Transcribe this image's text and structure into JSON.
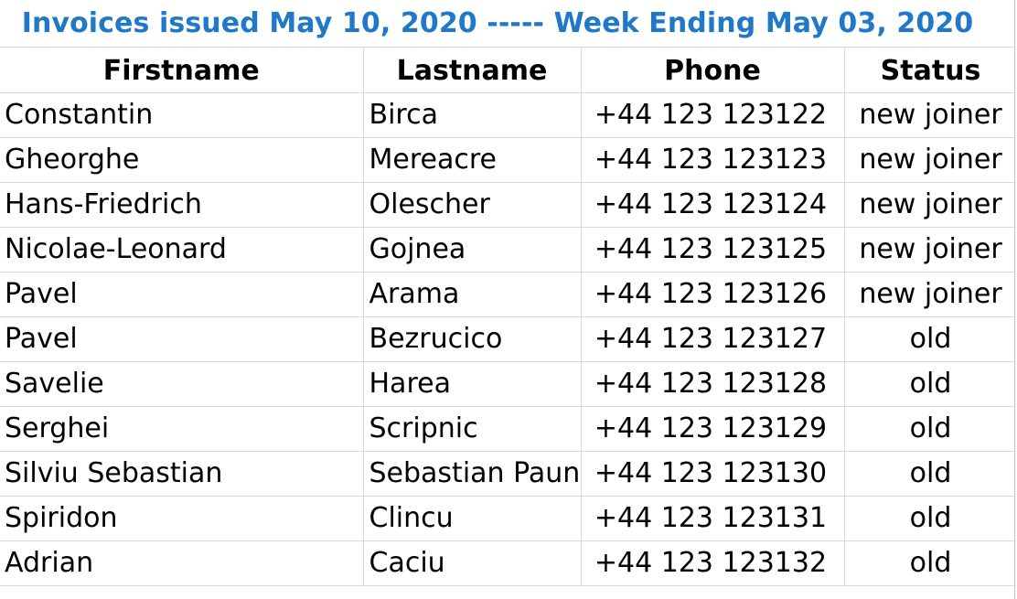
{
  "sheet": {
    "title": "Invoices issued May 10, 2020 ----- Week Ending May 03, 2020",
    "title_color": "#1f78c8",
    "gridline_color": "#d9d9d9",
    "headers": {
      "firstname": "Firstname",
      "lastname": "Lastname",
      "phone": "Phone",
      "status": "Status"
    },
    "rows": [
      {
        "firstname": "Constantin",
        "lastname": "Birca",
        "phone": "+44 123 123122",
        "status": "new joiner"
      },
      {
        "firstname": "Gheorghe",
        "lastname": "Mereacre",
        "phone": "+44 123 123123",
        "status": "new joiner"
      },
      {
        "firstname": "Hans-Friedrich",
        "lastname": "Olescher",
        "phone": "+44 123 123124",
        "status": "new joiner"
      },
      {
        "firstname": "Nicolae-Leonard",
        "lastname": "Gojnea",
        "phone": "+44 123 123125",
        "status": "new joiner"
      },
      {
        "firstname": "Pavel",
        "lastname": "Arama",
        "phone": "+44 123 123126",
        "status": "new joiner"
      },
      {
        "firstname": "Pavel",
        "lastname": "Bezrucico",
        "phone": "+44 123 123127",
        "status": "old"
      },
      {
        "firstname": "Savelie",
        "lastname": "Harea",
        "phone": "+44 123 123128",
        "status": "old"
      },
      {
        "firstname": "Serghei",
        "lastname": "Scripnic",
        "phone": "+44 123 123129",
        "status": "old"
      },
      {
        "firstname": "Silviu Sebastian",
        "lastname": "Sebastian Paun",
        "phone": "+44 123 123130",
        "status": "old"
      },
      {
        "firstname": "Spiridon",
        "lastname": "Clincu",
        "phone": "+44 123 123131",
        "status": "old"
      },
      {
        "firstname": "Adrian",
        "lastname": "Caciu",
        "phone": "+44 123 123132",
        "status": "old"
      }
    ]
  }
}
